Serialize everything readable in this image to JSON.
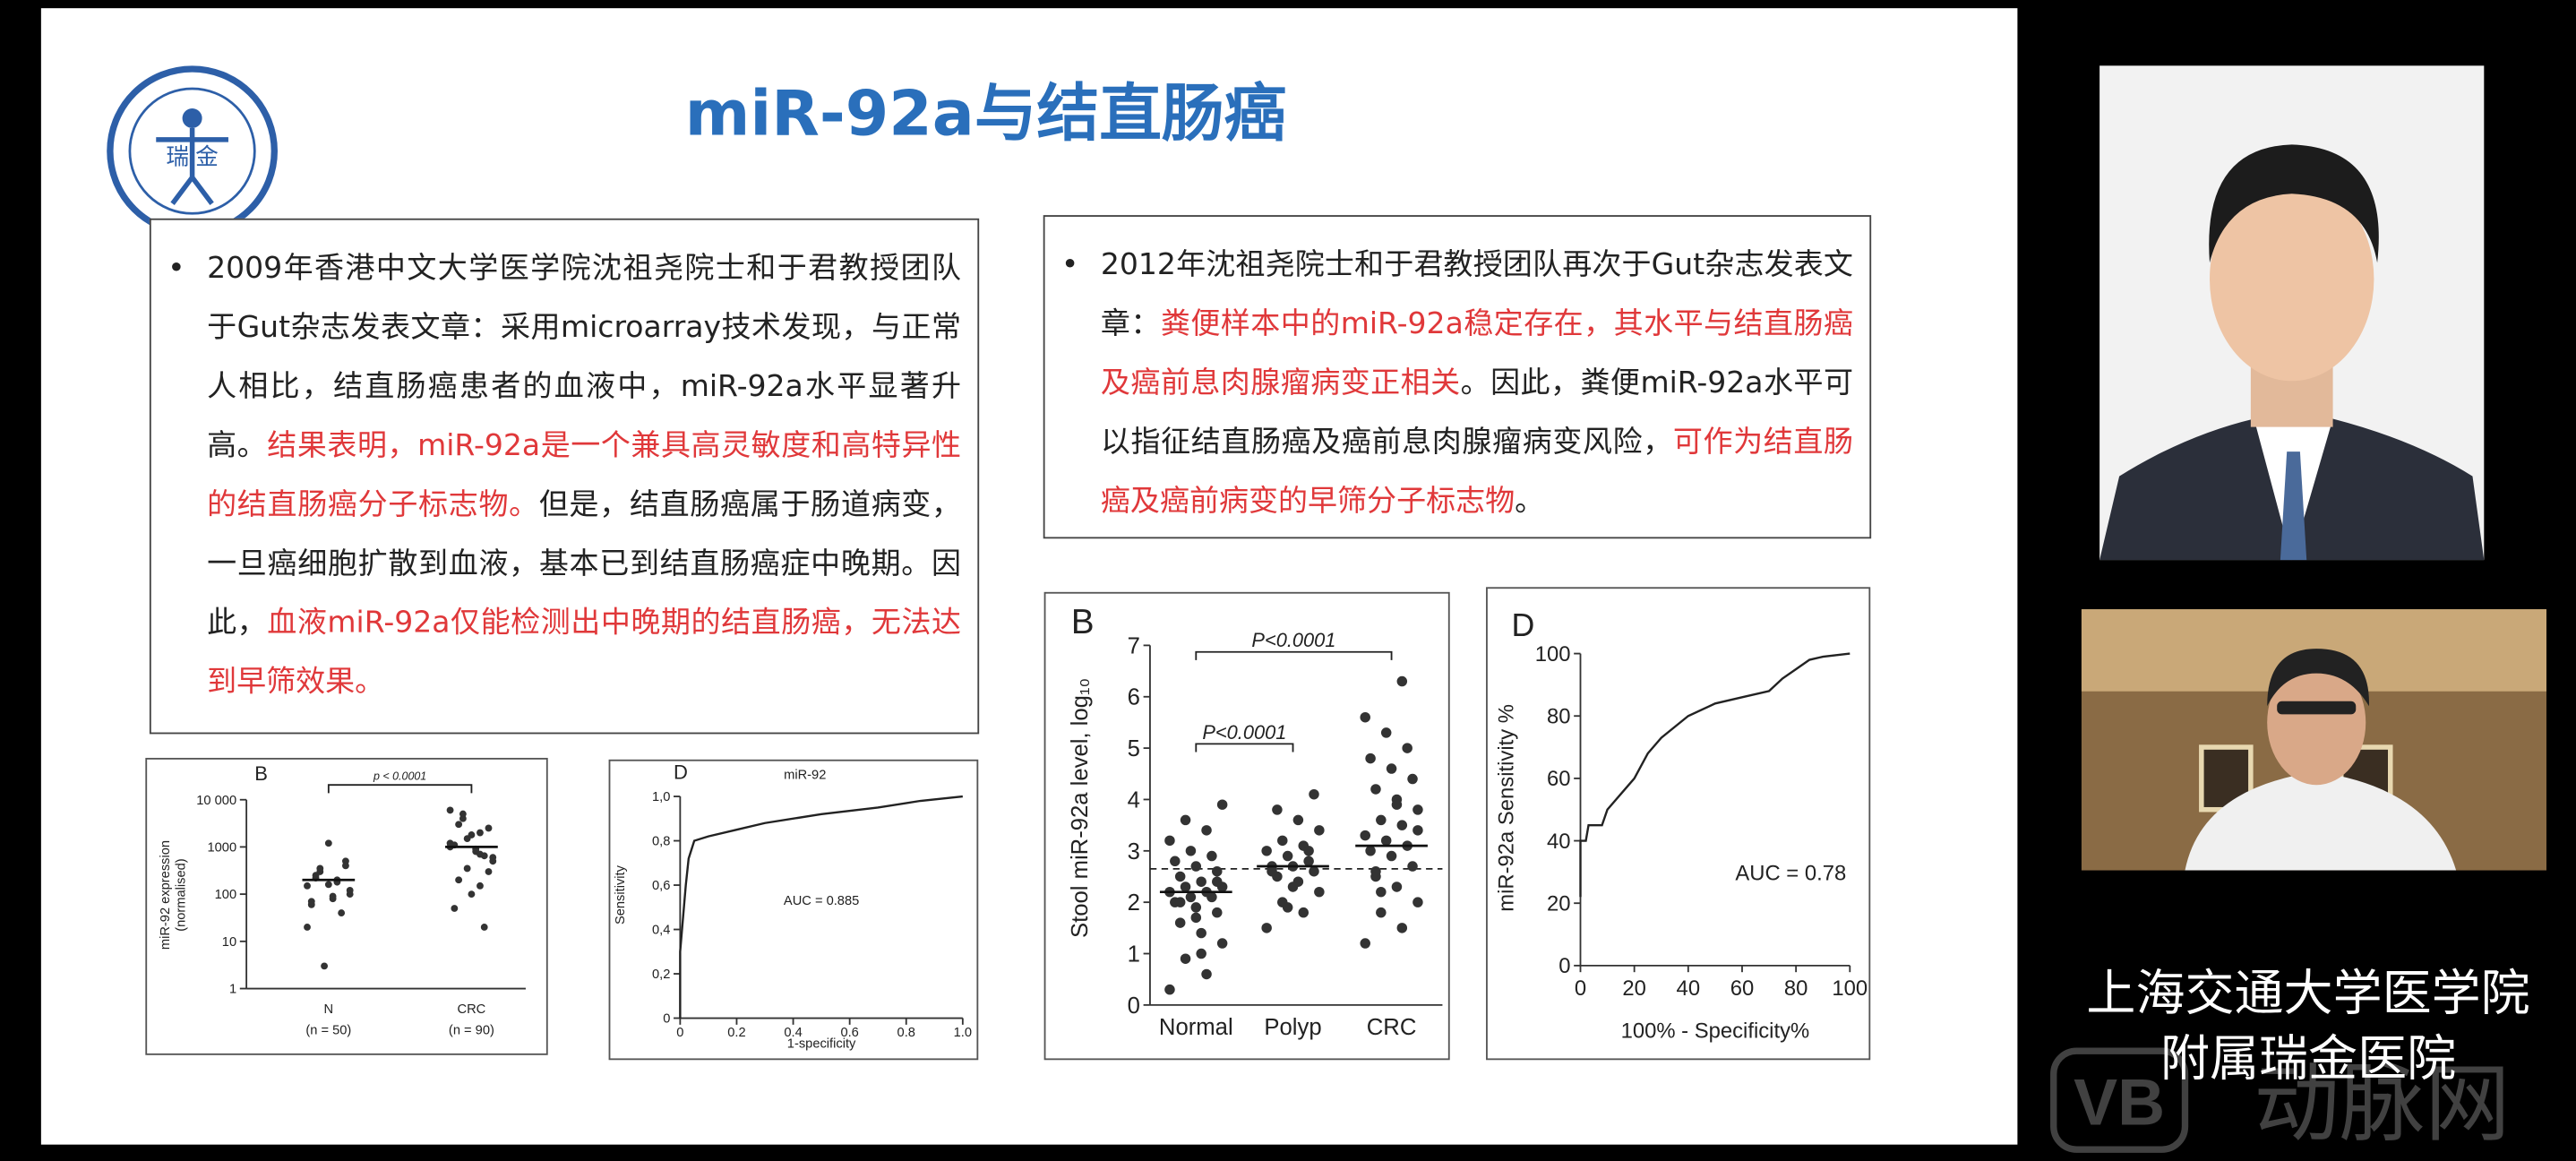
{
  "slide": {
    "title": "miR-92a与结直肠癌",
    "logo": {
      "label": "瑞 金"
    },
    "left_box": {
      "segments": [
        {
          "text": "2009年香港中文大学医学院沈祖尧院士和于君教授团队于Gut杂志发表文章：采用microarray技术发现，与正常人相比，结直肠癌患者的血液中，miR-92a水平显著升高。",
          "color": "#222222"
        },
        {
          "text": "结果表明，miR-92a是一个兼具高灵敏度和高特异性的结直肠癌分子标志物。",
          "color": "#e0383a"
        },
        {
          "text": "但是，结直肠癌属于肠道病变，一旦癌细胞扩散到血液，基本已到结直肠癌症中晚期。因此，",
          "color": "#222222"
        },
        {
          "text": "血液miR-92a仅能检测出中晚期的结直肠癌，无法达到早筛效果。",
          "color": "#e0383a"
        }
      ]
    },
    "right_box": {
      "segments": [
        {
          "text": "2012年沈祖尧院士和于君教授团队再次于Gut杂志发表文章：",
          "color": "#222222"
        },
        {
          "text": "粪便样本中的miR-92a稳定存在，其水平与结直肠癌及癌前息肉腺瘤病变正相关",
          "color": "#e0383a"
        },
        {
          "text": "。因此，粪便miR-92a水平可以指征结直肠癌及癌前息肉腺瘤病变风险，",
          "color": "#222222"
        },
        {
          "text": "可作为结直肠癌及癌前病变的早筛分子标志物",
          "color": "#e0383a"
        },
        {
          "text": "。",
          "color": "#222222"
        }
      ]
    },
    "figures": [
      {
        "type": "dot",
        "panel": "B",
        "ylabel": [
          "miR-92 expression",
          "(normalised)"
        ],
        "log_scale": true,
        "ylim": [
          1,
          10000
        ],
        "yticks": [
          1,
          10,
          100,
          1000,
          {
            "value": 10000,
            "label": "10 000"
          }
        ],
        "groups": [
          {
            "name": "N",
            "n": "(n = 50)",
            "median": 200,
            "points": [
              150,
              200,
              300,
              100,
              80,
              250,
              500,
              1200,
              60,
              40,
              3,
              20,
              180,
              350,
              120,
              90,
              220,
              400,
              160,
              70
            ]
          },
          {
            "name": "CRC",
            "n": "(n = 90)",
            "median": 1000,
            "points": [
              1000,
              2000,
              5000,
              500,
              800,
              3000,
              300,
              100,
              50,
              20,
              1500,
              1200,
              700,
              4000,
              600,
              900,
              200,
              2500,
              1800,
              1100,
              650,
              350,
              6000,
              150
            ]
          }
        ],
        "brackets": [
          {
            "from": 0,
            "to": 1,
            "label": "p < 0.0001"
          }
        ]
      },
      {
        "type": "roc",
        "panel": "D",
        "title": "miR-92",
        "ylabel": "Sensitivity",
        "xlabel": "1-specificity",
        "xlim": [
          0,
          1
        ],
        "ylim": [
          0,
          1
        ],
        "xticks": [
          0,
          0.2,
          0.4,
          0.6,
          0.8,
          {
            "value": 1,
            "label": "1.0"
          }
        ],
        "yticks": [
          0,
          {
            "value": 0.2,
            "label": "0,2"
          },
          {
            "value": 0.4,
            "label": "0,4"
          },
          {
            "value": 0.6,
            "label": "0,6"
          },
          {
            "value": 0.8,
            "label": "0,8"
          },
          {
            "value": 1,
            "label": "1,0"
          }
        ],
        "curve": {
          "x": [
            0,
            0,
            0.02,
            0.03,
            0.05,
            0.1,
            0.2,
            0.3,
            0.5,
            0.7,
            0.85,
            1
          ],
          "y": [
            0,
            0.3,
            0.6,
            0.72,
            0.8,
            0.82,
            0.85,
            0.88,
            0.92,
            0.95,
            0.98,
            1
          ]
        },
        "annotation": "AUC = 0.885"
      },
      {
        "type": "dot",
        "panel": "B",
        "ylabel": [
          "Stool miR-92a level, log₁₀"
        ],
        "log_scale": false,
        "ylim": [
          0,
          7
        ],
        "yticks": [
          0,
          1,
          2,
          3,
          4,
          5,
          6,
          7
        ],
        "cutoff": 2.65,
        "groups": [
          {
            "name": "Normal",
            "median": 2.2,
            "points": [
              0.3,
              0.6,
              0.9,
              1.2,
              1.4,
              1.6,
              1.8,
              1.9,
              2.0,
              2.1,
              2.1,
              2.2,
              2.2,
              2.3,
              2.3,
              2.4,
              2.5,
              2.6,
              2.7,
              2.8,
              2.9,
              3.0,
              3.2,
              3.4,
              3.6,
              3.9,
              1.0,
              2.0,
              2.4,
              1.7
            ]
          },
          {
            "name": "Polyp",
            "median": 2.7,
            "points": [
              1.5,
              1.8,
              2.0,
              2.2,
              2.4,
              2.5,
              2.6,
              2.7,
              2.7,
              2.8,
              2.9,
              3.0,
              3.1,
              3.2,
              3.4,
              3.6,
              3.8,
              4.1,
              2.3,
              2.6,
              3.0,
              1.9
            ]
          },
          {
            "name": "CRC",
            "median": 3.1,
            "points": [
              1.2,
              1.5,
              1.8,
              2.0,
              2.3,
              2.5,
              2.7,
              2.9,
              3.0,
              3.1,
              3.2,
              3.3,
              3.5,
              3.6,
              3.8,
              4.0,
              4.2,
              4.4,
              4.6,
              4.8,
              5.0,
              5.3,
              5.6,
              6.3,
              2.2,
              3.4,
              3.9,
              2.6
            ]
          }
        ],
        "brackets": [
          {
            "from": 0,
            "to": 2,
            "label": "P<0.0001"
          },
          {
            "from": 0,
            "to": 1,
            "label": "P<0.0001"
          }
        ]
      },
      {
        "type": "roc",
        "panel": "D",
        "ylabel": "miR-92a Sensitivity %",
        "xlabel": "100% - Specificity%",
        "xlim": [
          0,
          100
        ],
        "ylim": [
          0,
          100
        ],
        "xticks": [
          0,
          20,
          40,
          60,
          80,
          100
        ],
        "yticks": [
          0,
          20,
          40,
          60,
          80,
          100
        ],
        "curve": {
          "x": [
            0,
            0,
            2,
            3,
            8,
            10,
            15,
            20,
            25,
            30,
            40,
            50,
            60,
            70,
            75,
            80,
            85,
            90,
            100
          ],
          "y": [
            22,
            40,
            40,
            45,
            45,
            50,
            55,
            60,
            68,
            73,
            80,
            84,
            86,
            88,
            92,
            95,
            98,
            99,
            100
          ]
        },
        "annotation": "AUC = 0.78"
      }
    ]
  },
  "sidebar": {
    "caption": [
      "上海交通大学医学院",
      "附属瑞金医院"
    ]
  },
  "watermark": {
    "logo": "VB",
    "text": "动脉网"
  }
}
